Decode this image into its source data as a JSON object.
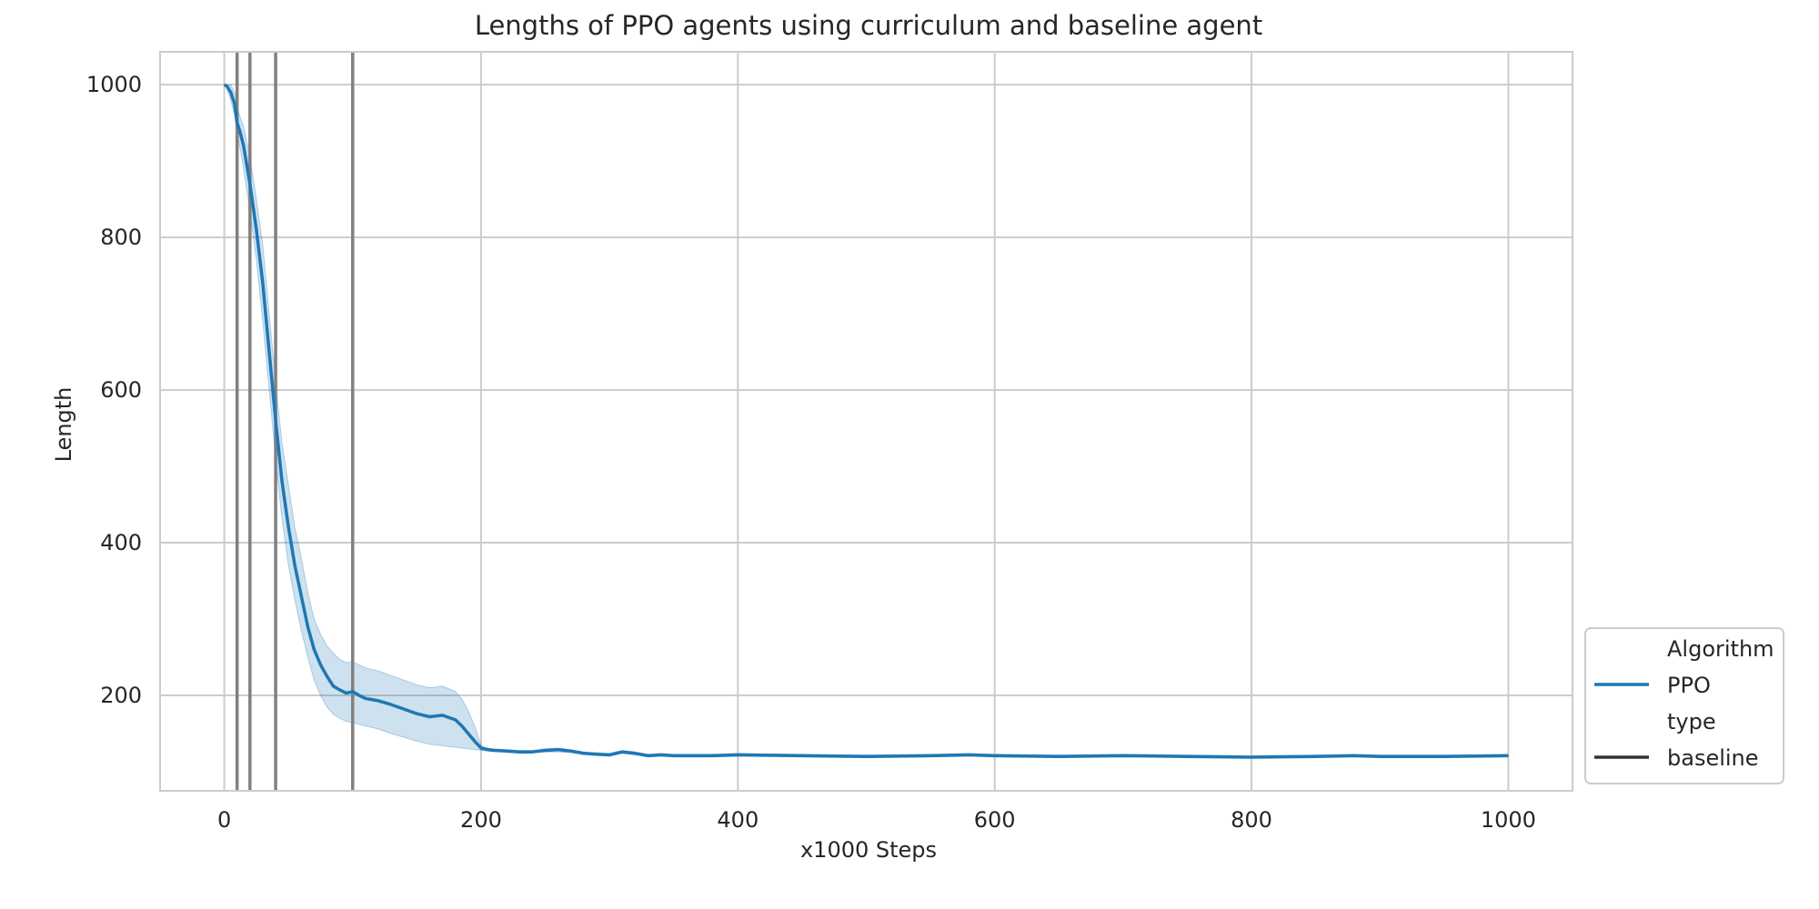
{
  "chart_data": {
    "type": "line",
    "title": "Lengths of PPO agents using curriculum and baseline agent",
    "xlabel": "x1000 Steps",
    "ylabel": "Length",
    "xlim": [
      -50,
      1050
    ],
    "ylim": [
      75,
      1043
    ],
    "xticks": [
      0,
      200,
      400,
      600,
      800,
      1000
    ],
    "yticks": [
      200,
      400,
      600,
      800,
      1000
    ],
    "xtick_labels": [
      "0",
      "200",
      "400",
      "600",
      "800",
      "1000"
    ],
    "ytick_labels": [
      "200",
      "400",
      "600",
      "800",
      "1000"
    ],
    "grid": true,
    "vertical_lines": [
      10,
      20,
      40,
      100
    ],
    "series": [
      {
        "name": "PPO",
        "color": "#1f77b4",
        "band_color": "#1f77b4",
        "x": [
          0,
          2,
          5,
          8,
          10,
          12,
          15,
          20,
          25,
          30,
          35,
          40,
          45,
          50,
          55,
          60,
          65,
          70,
          75,
          80,
          85,
          90,
          95,
          100,
          105,
          110,
          120,
          130,
          140,
          150,
          160,
          170,
          180,
          185,
          190,
          195,
          200,
          205,
          210,
          220,
          230,
          240,
          250,
          260,
          270,
          280,
          290,
          300,
          310,
          320,
          330,
          340,
          350,
          380,
          400,
          450,
          500,
          550,
          580,
          600,
          650,
          700,
          750,
          800,
          850,
          880,
          900,
          950,
          1000
        ],
        "y": [
          1000,
          998,
          990,
          975,
          950,
          940,
          920,
          870,
          810,
          740,
          650,
          560,
          480,
          420,
          370,
          330,
          290,
          260,
          240,
          225,
          212,
          207,
          203,
          205,
          200,
          196,
          193,
          188,
          182,
          176,
          172,
          174,
          168,
          160,
          150,
          140,
          131,
          129,
          128,
          127,
          126,
          126,
          128,
          129,
          127,
          124,
          123,
          122,
          126,
          124,
          121,
          122,
          121,
          121,
          122,
          121,
          120,
          121,
          122,
          121,
          120,
          121,
          120,
          119,
          120,
          121,
          120,
          120,
          121
        ],
        "lower": [
          1000,
          995,
          980,
          960,
          935,
          920,
          890,
          835,
          770,
          690,
          600,
          510,
          430,
          370,
          325,
          285,
          250,
          220,
          200,
          185,
          175,
          170,
          166,
          164,
          162,
          160,
          156,
          150,
          145,
          140,
          136,
          134,
          132,
          131,
          130,
          129,
          128,
          127,
          127,
          126,
          125,
          125,
          126,
          126,
          125,
          123,
          122,
          121,
          124,
          122,
          120,
          121,
          120,
          120,
          121,
          120,
          119,
          120,
          121,
          120,
          119,
          120,
          119,
          118,
          119,
          120,
          119,
          119,
          120
        ],
        "upper": [
          1000,
          1000,
          1000,
          990,
          970,
          960,
          945,
          905,
          850,
          790,
          700,
          610,
          530,
          475,
          420,
          380,
          335,
          300,
          280,
          265,
          255,
          247,
          243,
          244,
          240,
          236,
          232,
          226,
          220,
          214,
          210,
          212,
          205,
          195,
          180,
          160,
          134,
          131,
          130,
          129,
          128,
          128,
          130,
          131,
          129,
          126,
          125,
          124,
          128,
          126,
          123,
          124,
          123,
          123,
          124,
          123,
          122,
          123,
          124,
          123,
          122,
          123,
          122,
          121,
          122,
          123,
          122,
          122,
          123
        ]
      }
    ],
    "legend": {
      "placement": "lower-right-outside",
      "entries": [
        {
          "label": "Algorithm",
          "kind": "header"
        },
        {
          "label": "PPO",
          "kind": "line",
          "color": "#1f77b4"
        },
        {
          "label": "type",
          "kind": "header"
        },
        {
          "label": "baseline",
          "kind": "line",
          "color": "#333333"
        }
      ]
    },
    "colors": {
      "vline": "#808080",
      "grid": "#cccccc",
      "spine": "#cccccc"
    }
  }
}
